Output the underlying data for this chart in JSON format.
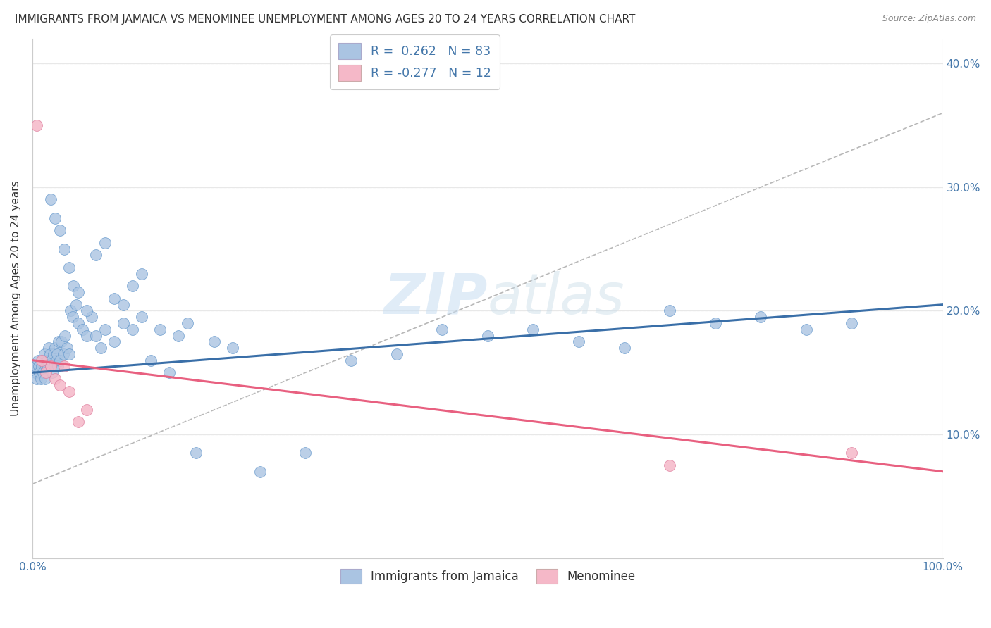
{
  "title": "IMMIGRANTS FROM JAMAICA VS MENOMINEE UNEMPLOYMENT AMONG AGES 20 TO 24 YEARS CORRELATION CHART",
  "source": "Source: ZipAtlas.com",
  "ylabel": "Unemployment Among Ages 20 to 24 years",
  "xlim": [
    0,
    100
  ],
  "ylim": [
    0,
    42
  ],
  "x_tick_positions": [
    0,
    100
  ],
  "x_tick_labels": [
    "0.0%",
    "100.0%"
  ],
  "y_tick_positions": [
    10,
    20,
    30,
    40
  ],
  "y_tick_labels": [
    "10.0%",
    "20.0%",
    "30.0%",
    "40.0%"
  ],
  "blue_color": "#aac4e2",
  "blue_edge_color": "#6699cc",
  "pink_color": "#f5b8c8",
  "pink_edge_color": "#e080a0",
  "blue_line_color": "#3a6fa8",
  "pink_line_color": "#e86080",
  "gray_dash_color": "#b8b8b8",
  "watermark_color": "#d8eaf6",
  "background_color": "#ffffff",
  "grid_color": "#e8e8e8",
  "label_color": "#4477aa",
  "text_color": "#333333",
  "blue_trend_y0": 15.0,
  "blue_trend_y1": 20.5,
  "pink_trend_y0": 16.0,
  "pink_trend_y1": 7.0,
  "gray_trend_y0": 6.0,
  "gray_trend_y1": 36.0,
  "blue_x": [
    0.3,
    0.4,
    0.5,
    0.6,
    0.7,
    0.8,
    0.9,
    1.0,
    1.1,
    1.2,
    1.3,
    1.4,
    1.5,
    1.6,
    1.7,
    1.8,
    1.9,
    2.0,
    2.1,
    2.2,
    2.3,
    2.4,
    2.5,
    2.6,
    2.7,
    2.8,
    2.9,
    3.0,
    3.2,
    3.4,
    3.6,
    3.8,
    4.0,
    4.2,
    4.4,
    4.8,
    5.0,
    5.5,
    6.0,
    6.5,
    7.0,
    7.5,
    8.0,
    9.0,
    10.0,
    11.0,
    12.0,
    13.0,
    14.0,
    15.0,
    16.0,
    17.0,
    18.0,
    20.0,
    22.0,
    25.0,
    30.0,
    35.0,
    40.0,
    45.0,
    50.0,
    55.0,
    60.0,
    65.0,
    70.0,
    75.0,
    80.0,
    85.0,
    90.0,
    2.0,
    2.5,
    3.0,
    3.5,
    4.0,
    4.5,
    5.0,
    6.0,
    7.0,
    8.0,
    9.0,
    10.0,
    11.0,
    12.0
  ],
  "blue_y": [
    15.0,
    15.5,
    14.5,
    16.0,
    15.5,
    15.0,
    14.5,
    15.5,
    16.0,
    15.0,
    16.5,
    14.5,
    15.5,
    16.0,
    15.5,
    17.0,
    16.5,
    15.5,
    16.0,
    15.0,
    16.5,
    15.5,
    17.0,
    16.0,
    16.5,
    15.5,
    17.5,
    16.0,
    17.5,
    16.5,
    18.0,
    17.0,
    16.5,
    20.0,
    19.5,
    20.5,
    19.0,
    18.5,
    18.0,
    19.5,
    18.0,
    17.0,
    18.5,
    17.5,
    19.0,
    18.5,
    19.5,
    16.0,
    18.5,
    15.0,
    18.0,
    19.0,
    8.5,
    17.5,
    17.0,
    7.0,
    8.5,
    16.0,
    16.5,
    18.5,
    18.0,
    18.5,
    17.5,
    17.0,
    20.0,
    19.0,
    19.5,
    18.5,
    19.0,
    29.0,
    27.5,
    26.5,
    25.0,
    23.5,
    22.0,
    21.5,
    20.0,
    24.5,
    25.5,
    21.0,
    20.5,
    22.0,
    23.0
  ],
  "pink_x": [
    0.5,
    1.0,
    1.5,
    2.0,
    2.5,
    3.0,
    3.5,
    4.0,
    5.0,
    6.0,
    70.0,
    90.0
  ],
  "pink_y": [
    35.0,
    16.0,
    15.0,
    15.5,
    14.5,
    14.0,
    15.5,
    13.5,
    11.0,
    12.0,
    7.5,
    8.5
  ]
}
